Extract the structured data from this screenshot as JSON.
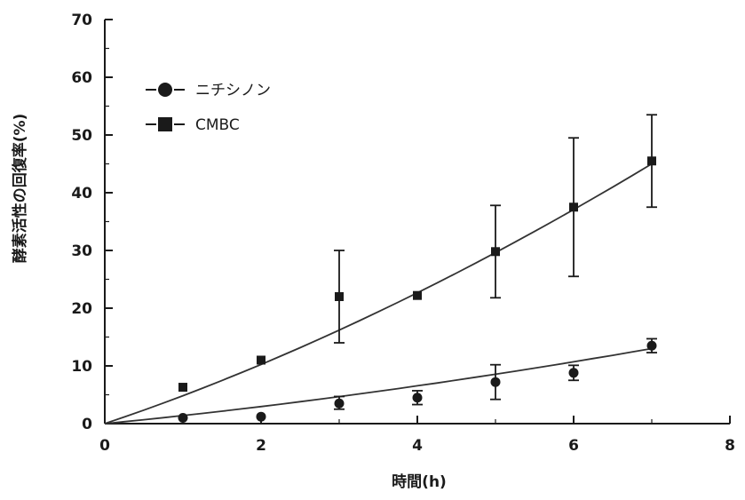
{
  "chart_data": {
    "type": "line",
    "title": "",
    "xlabel": "時間(h)",
    "ylabel": "酵素活性の回復率(%)",
    "xlim": [
      0,
      8
    ],
    "ylim": [
      0,
      70
    ],
    "xticks": [
      0,
      2,
      4,
      6,
      8
    ],
    "yticks": [
      0,
      10,
      20,
      30,
      40,
      50,
      60,
      70
    ],
    "grid": false,
    "legend_position": "top-left",
    "series": [
      {
        "name": "ニチシノン",
        "marker": "circle",
        "color": "#1a1a1a",
        "x": [
          1,
          2,
          3,
          4,
          5,
          6,
          7
        ],
        "y": [
          1,
          1.2,
          3.5,
          4.5,
          7.2,
          8.8,
          13.5
        ],
        "err_low": [
          0,
          0,
          1,
          1.2,
          3,
          1.3,
          1.2
        ],
        "err_high": [
          0,
          0,
          1.2,
          1.2,
          3,
          1.3,
          1.2
        ],
        "fit_y_at_7": 13
      },
      {
        "name": "CMBC",
        "marker": "square",
        "color": "#1a1a1a",
        "x": [
          1,
          2,
          3,
          4,
          5,
          6,
          7
        ],
        "y": [
          6.3,
          11,
          22,
          22.2,
          29.8,
          37.5,
          45.5
        ],
        "err_low": [
          0,
          0,
          8,
          0,
          8,
          12,
          8
        ],
        "err_high": [
          0,
          0,
          8,
          0,
          8,
          12,
          8
        ],
        "fit_y_at_7": 45
      }
    ]
  }
}
